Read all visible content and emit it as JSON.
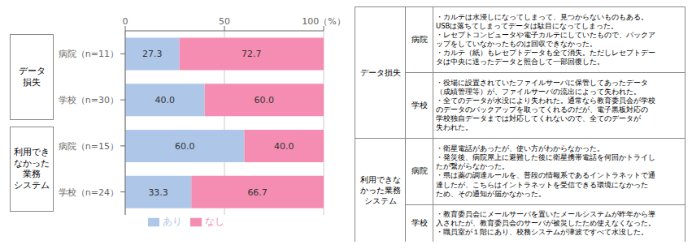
{
  "chart_data": {
    "type": "bar",
    "orientation": "horizontal",
    "stacked": true,
    "data_labels": true,
    "grid": true,
    "legend": "bottom",
    "categories": [
      "病院（n=11）",
      "学校（n=30）",
      "病院（n=15）",
      "学校（n=24）"
    ],
    "series": [
      {
        "name": "あり",
        "color": "#aec6e8",
        "values": [
          27.3,
          40.0,
          60.0,
          33.3
        ],
        "value_labels": [
          "27.3",
          "40.0",
          "60.0",
          "33.3"
        ]
      },
      {
        "name": "なし",
        "color": "#f58db2",
        "values": [
          72.7,
          60.0,
          40.0,
          66.7
        ],
        "value_labels": [
          "72.7",
          "60.0",
          "40.0",
          "66.7"
        ]
      }
    ],
    "xlim": [
      0,
      100
    ],
    "xticks": [
      0,
      50,
      {
        "value": 100,
        "label": "100（%）"
      }
    ],
    "annotations": {
      "groups": [
        "データ\n損失",
        "利用でき\nなかった\n業務\nシステム"
      ],
      "table": [
        {
          "category": "データ損失",
          "rows": [
            {
              "label": "病院",
              "text": "・カルテは水浸しになってしまって、見つからないものもある。\nUSBは落ちてしまってデータは駄目になってしまった。\n・レセプトコンピュータや電子カルテにしていたもので、バックア\nップをしていなかったものは回収できなかった。\n・カルテ（紙）もレセプトデータも全て消失。ただしレセプトデー\nタは中央に送ったデータと照合して一部回復した。"
            },
            {
              "label": "学校",
              "text": "・役場に設置されていたファイルサーバに保管してあったデータ\n（成績管理等）が、ファイルサーバの流出によって失われた。\n・全てのデータが水没により失われた。通常なら教育委員会が学校\nのデータのバックアップを取ってくれるのだが、電子黒板対応の\n学校独自データまでは対応してくれないので、全てのデータが\n失われた。"
            }
          ]
        },
        {
          "category": "利用できな\nかった業務\nシステム",
          "rows": [
            {
              "label": "病院",
              "text": "・衛星電話があったが、使い方がわからなかった。\n・発災後、病院屋上に避難した後に衛星携帯電話を何回かトライし\nたが繋がらなかった。\n・県は薬の調達ルールを、普段の情報系であるイントラネットで通\n達したが、こちらはイントラネットを受信できる環境になかった\nため、その通知が届かなかった。"
            },
            {
              "label": "学校",
              "text": "・教育委員会にメールサーバを置いたメールシステムが昨年から導\n入されたが、教育委員会のサーバが被災したため使えなくなった。\n・職員室が１階にあり、校務システムが津波ですべて水没した。"
            }
          ]
        }
      ]
    }
  }
}
